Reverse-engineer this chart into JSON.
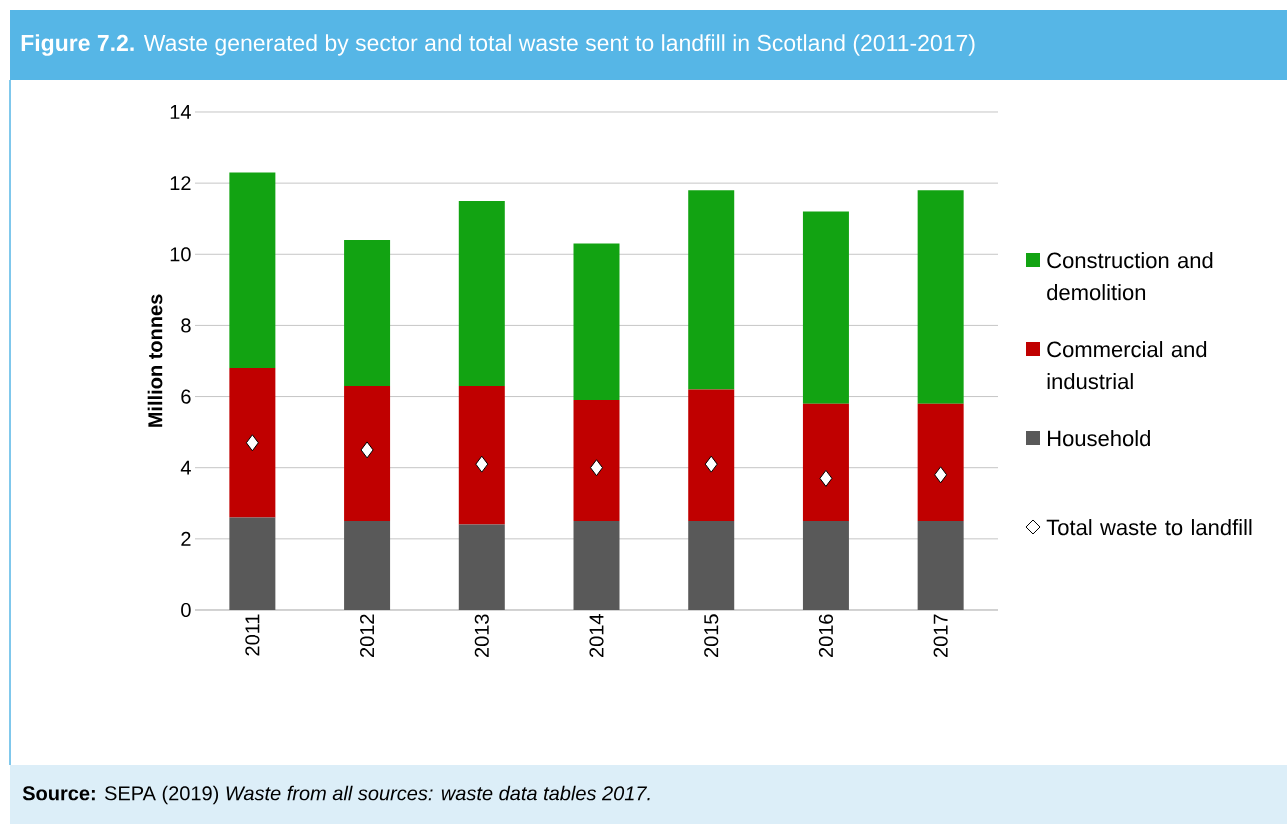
{
  "chart_data": {
    "type": "bar",
    "title": "**Figure 7.2.** Waste generated by sector and total waste sent to landfill in Scotland (2011-2017)",
    "ylabel": "Million tonnes",
    "annotations": [
      "**Source:** SEPA (2019) *Waste from all sources: waste data tables 2017.*"
    ],
    "categories": [
      "2011",
      "2012",
      "2013",
      "2014",
      "2015",
      "2016",
      "2017"
    ],
    "stacked": true,
    "grid": "y",
    "legend": "right",
    "marker": "diamond",
    "ylim": [
      0,
      14
    ],
    "yticks": [
      0,
      2,
      4,
      6,
      8,
      10,
      12,
      14
    ],
    "series": [
      {
        "name": "Household",
        "color": "#595959",
        "values": [
          2.6,
          2.5,
          2.4,
          2.5,
          2.5,
          2.5,
          2.5
        ]
      },
      {
        "name": "Commercial and industrial",
        "color": "#c00000",
        "values": [
          4.2,
          3.8,
          3.9,
          3.4,
          3.7,
          3.3,
          3.3
        ]
      },
      {
        "name": "Construction and demolition",
        "color": "#12a312",
        "values": [
          5.5,
          4.1,
          5.2,
          4.4,
          5.6,
          5.4,
          6.0
        ]
      },
      {
        "name": "Total waste to landfill",
        "type": "scatter",
        "color": "#ffffff",
        "values": [
          4.7,
          4.5,
          4.1,
          4.0,
          4.1,
          3.7,
          3.8
        ]
      }
    ]
  }
}
